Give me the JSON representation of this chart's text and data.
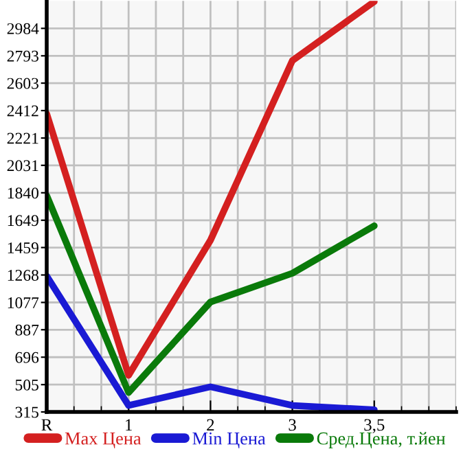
{
  "chart_data": {
    "type": "line",
    "categories": [
      "R",
      "1",
      "2",
      "3",
      "3,5"
    ],
    "series": [
      {
        "name": "Max Цена",
        "color": "#d42020",
        "values": [
          2390,
          570,
          1510,
          2760,
          3170
        ]
      },
      {
        "name": "Min Цена",
        "color": "#1a1ad4",
        "values": [
          1260,
          360,
          490,
          360,
          330
        ]
      },
      {
        "name": "Сред.Цена, т.йен",
        "color": "#0a7a0a",
        "values": [
          1820,
          450,
          1080,
          1280,
          1610
        ]
      }
    ],
    "ylim": [
      315,
      3175
    ],
    "yticks": [
      315,
      505,
      696,
      887,
      1077,
      1268,
      1459,
      1649,
      1840,
      2031,
      2221,
      2412,
      2603,
      2793,
      2984
    ],
    "grid": true,
    "legend": "bottom",
    "marker": "none",
    "line_style": "solid"
  }
}
